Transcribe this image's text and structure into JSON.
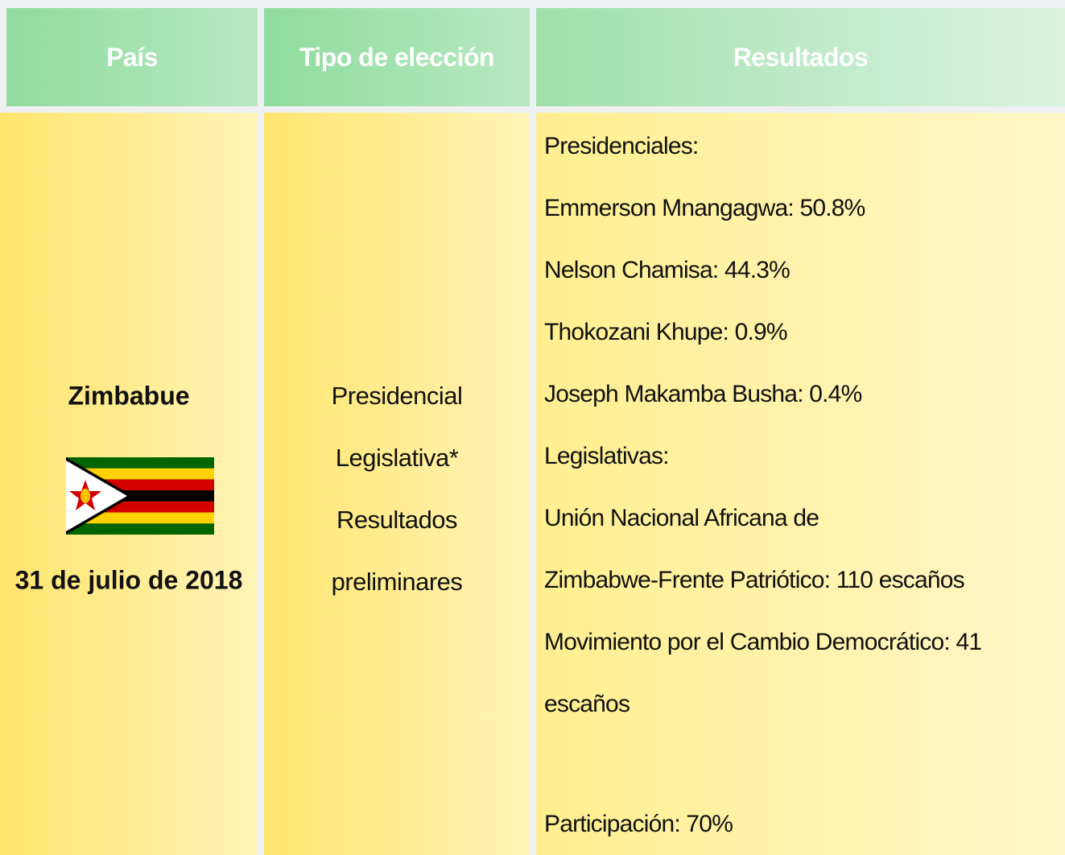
{
  "table": {
    "header": [
      "País",
      "Tipo de elección",
      "Resultados"
    ],
    "row": {
      "country": "Zimbabue",
      "date": "31 de julio de 2018",
      "type": [
        "Presidencial",
        "Legislativa*",
        "Resultados",
        "preliminares"
      ],
      "results": [
        "Presidenciales:",
        "Emmerson Mnangagwa: 50.8%",
        "Nelson Chamisa: 44.3%",
        "Thokozani Khupe: 0.9%",
        "Joseph Makamba Busha: 0.4%",
        " Legislativas:",
        "Unión Nacional Africana de",
        "Zimbabwe-Frente Patriótico: 110 escaños",
        "Movimiento por el Cambio Democrático: 41",
        "escaños",
        "Participación: 70%"
      ]
    }
  }
}
